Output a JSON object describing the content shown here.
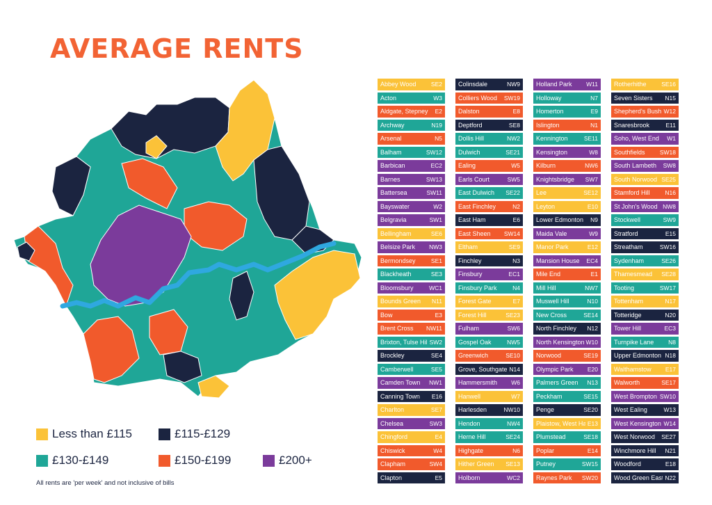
{
  "title": "AVERAGE RENTS",
  "colors": {
    "low": "#fbc238",
    "mid_low": "#1b2440",
    "mid": "#1fa697",
    "mid_high": "#f15a2c",
    "high": "#7b3b9b",
    "river": "#2fa8e0"
  },
  "legend": {
    "items": [
      {
        "key": "low",
        "label": "Less than £115"
      },
      {
        "key": "mid_low",
        "label": "£115-£129"
      },
      {
        "key": "mid",
        "label": "£130-£149"
      },
      {
        "key": "mid_high",
        "label": "£150-£199"
      },
      {
        "key": "high",
        "label": "£200+"
      }
    ],
    "note": "All rents are 'per week' and not inclusive of bills"
  },
  "areas": [
    [
      {
        "name": "Abbey Wood",
        "code": "SE2",
        "band": "low"
      },
      {
        "name": "Acton",
        "code": "W3",
        "band": "mid"
      },
      {
        "name": "Aldgate, Stepney",
        "code": "E2",
        "band": "mid_high"
      },
      {
        "name": "Archway",
        "code": "N19",
        "band": "mid"
      },
      {
        "name": "Arsenal",
        "code": "N5",
        "band": "mid_high"
      },
      {
        "name": "Balham",
        "code": "SW12",
        "band": "mid"
      },
      {
        "name": "Barbican",
        "code": "EC2",
        "band": "high"
      },
      {
        "name": "Barnes",
        "code": "SW13",
        "band": "high"
      },
      {
        "name": "Battersea",
        "code": "SW11",
        "band": "high"
      },
      {
        "name": "Bayswater",
        "code": "W2",
        "band": "high"
      },
      {
        "name": "Belgravia",
        "code": "SW1",
        "band": "high"
      },
      {
        "name": "Bellingham",
        "code": "SE6",
        "band": "low"
      },
      {
        "name": "Belsize Park",
        "code": "NW3",
        "band": "high"
      },
      {
        "name": "Bermondsey",
        "code": "SE1",
        "band": "mid_high"
      },
      {
        "name": "Blackheath",
        "code": "SE3",
        "band": "mid"
      },
      {
        "name": "Bloomsbury",
        "code": "WC1",
        "band": "high"
      },
      {
        "name": "Bounds Green",
        "code": "N11",
        "band": "low"
      },
      {
        "name": "Bow",
        "code": "E3",
        "band": "mid_high"
      },
      {
        "name": "Brent Cross",
        "code": "NW11",
        "band": "mid_high"
      },
      {
        "name": "Brixton, Tulse Hill",
        "code": "SW2",
        "band": "mid"
      },
      {
        "name": "Brockley",
        "code": "SE4",
        "band": "mid_low"
      },
      {
        "name": "Camberwell",
        "code": "SE5",
        "band": "mid"
      },
      {
        "name": "Camden Town",
        "code": "NW1",
        "band": "high"
      },
      {
        "name": "Canning Town",
        "code": "E16",
        "band": "mid_low"
      },
      {
        "name": "Charlton",
        "code": "SE7",
        "band": "low"
      },
      {
        "name": "Chelsea",
        "code": "SW3",
        "band": "high"
      },
      {
        "name": "Chingford",
        "code": "E4",
        "band": "low"
      },
      {
        "name": "Chiswick",
        "code": "W4",
        "band": "mid_high"
      },
      {
        "name": "Clapham",
        "code": "SW4",
        "band": "mid_high"
      },
      {
        "name": "Clapton",
        "code": "E5",
        "band": "mid_low"
      }
    ],
    [
      {
        "name": "Colinsdale",
        "code": "NW9",
        "band": "mid_low"
      },
      {
        "name": "Colliers Wood",
        "code": "SW19",
        "band": "mid_high"
      },
      {
        "name": "Dalston",
        "code": "E8",
        "band": "mid_high"
      },
      {
        "name": "Deptford",
        "code": "SE8",
        "band": "mid_low"
      },
      {
        "name": "Dollis Hill",
        "code": "NW2",
        "band": "mid"
      },
      {
        "name": "Dulwich",
        "code": "SE21",
        "band": "mid"
      },
      {
        "name": "Ealing",
        "code": "W5",
        "band": "mid_high"
      },
      {
        "name": "Earls Court",
        "code": "SW5",
        "band": "high"
      },
      {
        "name": "East Dulwich",
        "code": "SE22",
        "band": "mid"
      },
      {
        "name": "East Finchley",
        "code": "N2",
        "band": "mid_high"
      },
      {
        "name": "East Ham",
        "code": "E6",
        "band": "mid_low"
      },
      {
        "name": "East Sheen",
        "code": "SW14",
        "band": "mid_high"
      },
      {
        "name": "Eltham",
        "code": "SE9",
        "band": "low"
      },
      {
        "name": "Finchley",
        "code": "N3",
        "band": "mid_low"
      },
      {
        "name": "Finsbury",
        "code": "EC1",
        "band": "high"
      },
      {
        "name": "Finsbury Park",
        "code": "N4",
        "band": "mid"
      },
      {
        "name": "Forest Gate",
        "code": "E7",
        "band": "low"
      },
      {
        "name": "Forest Hill",
        "code": "SE23",
        "band": "low"
      },
      {
        "name": "Fulham",
        "code": "SW6",
        "band": "high"
      },
      {
        "name": "Gospel Oak",
        "code": "NW5",
        "band": "mid"
      },
      {
        "name": "Greenwich",
        "code": "SE10",
        "band": "mid_high"
      },
      {
        "name": "Grove, Southgate",
        "code": "N14",
        "band": "mid_low"
      },
      {
        "name": "Hammersmith",
        "code": "W6",
        "band": "high"
      },
      {
        "name": "Hanwell",
        "code": "W7",
        "band": "low"
      },
      {
        "name": "Harlesden",
        "code": "NW10",
        "band": "mid_low"
      },
      {
        "name": "Hendon",
        "code": "NW4",
        "band": "mid"
      },
      {
        "name": "Herne Hill",
        "code": "SE24",
        "band": "mid"
      },
      {
        "name": "Highgate",
        "code": "N6",
        "band": "mid_high"
      },
      {
        "name": "Hither Green",
        "code": "SE13",
        "band": "low"
      },
      {
        "name": "Holborn",
        "code": "WC2",
        "band": "high"
      }
    ],
    [
      {
        "name": "Holland Park",
        "code": "W11",
        "band": "high"
      },
      {
        "name": "Holloway",
        "code": "N7",
        "band": "mid"
      },
      {
        "name": "Homerton",
        "code": "E9",
        "band": "mid"
      },
      {
        "name": "Islington",
        "code": "N1",
        "band": "mid_high"
      },
      {
        "name": "Kennington",
        "code": "SE11",
        "band": "mid"
      },
      {
        "name": "Kensington",
        "code": "W8",
        "band": "high"
      },
      {
        "name": "Kilburn",
        "code": "NW6",
        "band": "mid_high"
      },
      {
        "name": "Knightsbridge",
        "code": "SW7",
        "band": "high"
      },
      {
        "name": "Lee",
        "code": "SE12",
        "band": "low"
      },
      {
        "name": "Leyton",
        "code": "E10",
        "band": "low"
      },
      {
        "name": "Lower Edmonton",
        "code": "N9",
        "band": "mid_low"
      },
      {
        "name": "Maida Vale",
        "code": "W9",
        "band": "high"
      },
      {
        "name": "Manor Park",
        "code": "E12",
        "band": "low"
      },
      {
        "name": "Mansion House",
        "code": "EC4",
        "band": "high"
      },
      {
        "name": "Mile End",
        "code": "E1",
        "band": "mid_high"
      },
      {
        "name": "Mill Hill",
        "code": "NW7",
        "band": "mid"
      },
      {
        "name": "Muswell Hill",
        "code": "N10",
        "band": "mid"
      },
      {
        "name": "New Cross",
        "code": "SE14",
        "band": "mid"
      },
      {
        "name": "North Finchley",
        "code": "N12",
        "band": "mid_low"
      },
      {
        "name": "North Kensington",
        "code": "W10",
        "band": "high"
      },
      {
        "name": "Norwood",
        "code": "SE19",
        "band": "mid_high"
      },
      {
        "name": "Olympic Park",
        "code": "E20",
        "band": "high"
      },
      {
        "name": "Palmers Green",
        "code": "N13",
        "band": "mid"
      },
      {
        "name": "Peckham",
        "code": "SE15",
        "band": "mid"
      },
      {
        "name": "Penge",
        "code": "SE20",
        "band": "mid_low"
      },
      {
        "name": "Plaistow, West Ham",
        "code": "E13",
        "band": "low"
      },
      {
        "name": "Plumstead",
        "code": "SE18",
        "band": "mid"
      },
      {
        "name": "Poplar",
        "code": "E14",
        "band": "mid_high"
      },
      {
        "name": "Putney",
        "code": "SW15",
        "band": "mid"
      },
      {
        "name": "Raynes Park",
        "code": "SW20",
        "band": "mid_high"
      }
    ],
    [
      {
        "name": "Rotherhithe",
        "code": "SE16",
        "band": "low"
      },
      {
        "name": "Seven Sisters",
        "code": "N15",
        "band": "mid_low"
      },
      {
        "name": "Shepherd's Bush",
        "code": "W12",
        "band": "mid_high"
      },
      {
        "name": "Snaresbrook",
        "code": "E11",
        "band": "mid_low"
      },
      {
        "name": "Soho, West End",
        "code": "W1",
        "band": "high"
      },
      {
        "name": "Southfields",
        "code": "SW18",
        "band": "mid_high"
      },
      {
        "name": "South Lambeth",
        "code": "SW8",
        "band": "high"
      },
      {
        "name": "South Norwood",
        "code": "SE25",
        "band": "low"
      },
      {
        "name": "Stamford Hill",
        "code": "N16",
        "band": "mid_high"
      },
      {
        "name": "St John's Wood",
        "code": "NW8",
        "band": "high"
      },
      {
        "name": "Stockwell",
        "code": "SW9",
        "band": "mid"
      },
      {
        "name": "Stratford",
        "code": "E15",
        "band": "mid_low"
      },
      {
        "name": "Streatham",
        "code": "SW16",
        "band": "mid_low"
      },
      {
        "name": "Sydenham",
        "code": "SE26",
        "band": "mid"
      },
      {
        "name": "Thamesmead",
        "code": "SE28",
        "band": "low"
      },
      {
        "name": "Tooting",
        "code": "SW17",
        "band": "mid"
      },
      {
        "name": "Tottenham",
        "code": "N17",
        "band": "low"
      },
      {
        "name": "Totteridge",
        "code": "N20",
        "band": "mid_low"
      },
      {
        "name": "Tower Hill",
        "code": "EC3",
        "band": "high"
      },
      {
        "name": "Turnpike Lane",
        "code": "N8",
        "band": "mid"
      },
      {
        "name": "Upper Edmonton",
        "code": "N18",
        "band": "mid_low"
      },
      {
        "name": "Walthamstow",
        "code": "E17",
        "band": "low"
      },
      {
        "name": "Walworth",
        "code": "SE17",
        "band": "mid_high"
      },
      {
        "name": "West Brompton",
        "code": "SW10",
        "band": "high"
      },
      {
        "name": "West Ealing",
        "code": "W13",
        "band": "mid_low"
      },
      {
        "name": "West Kensington",
        "code": "W14",
        "band": "high"
      },
      {
        "name": "West Norwood",
        "code": "SE27",
        "band": "mid_low"
      },
      {
        "name": "Winchmore Hill",
        "code": "N21",
        "band": "mid_low"
      },
      {
        "name": "Woodford",
        "code": "E18",
        "band": "mid_low"
      },
      {
        "name": "Wood Green East",
        "code": "N22",
        "band": "mid_low"
      }
    ]
  ]
}
